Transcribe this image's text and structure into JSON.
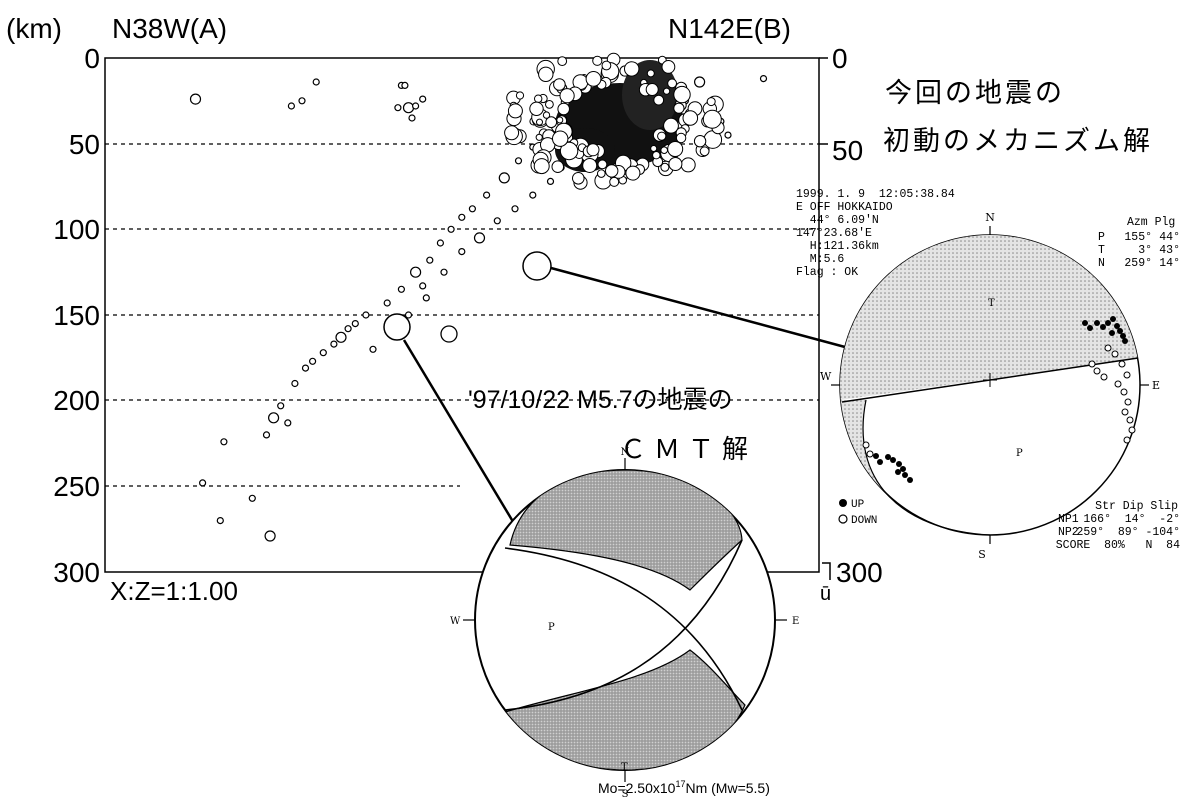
{
  "header": {
    "unit": "(km)",
    "left_direction": "N38W(A)",
    "right_direction": "N142E(B)"
  },
  "chart_data": {
    "type": "scatter",
    "title": "",
    "xlabel": "",
    "ylabel": "(km)",
    "ylim": [
      0,
      300
    ],
    "y_inverted": true,
    "yticks_left": [
      "0",
      "50",
      "100",
      "150",
      "200",
      "250",
      "300"
    ],
    "yticks_right": [
      "0",
      "50",
      "300"
    ],
    "scale_note": "X:Z=1:1.00",
    "right_axis_mark": "ū",
    "grid": "dashed horizontal lines at 50 km intervals",
    "points_note": "hypocenter depth cross-section, open circles sized by magnitude",
    "series": [
      {
        "name": "",
        "points_dist_depth": [
          [
            10,
            24
          ],
          [
            37,
            28
          ],
          [
            40,
            25
          ],
          [
            44,
            14
          ],
          [
            68,
            16
          ],
          [
            69,
            16
          ],
          [
            67,
            29
          ],
          [
            70,
            29
          ],
          [
            71,
            35
          ],
          [
            72,
            28
          ],
          [
            74,
            24
          ],
          [
            120,
            14
          ],
          [
            127,
            19
          ],
          [
            123,
            30
          ],
          [
            130,
            23
          ],
          [
            128,
            37
          ],
          [
            126,
            40
          ],
          [
            118,
            37
          ],
          [
            115,
            37
          ],
          [
            105,
            52
          ],
          [
            101,
            60
          ],
          [
            97,
            70
          ],
          [
            92,
            80
          ],
          [
            88,
            88
          ],
          [
            85,
            93
          ],
          [
            82,
            100
          ],
          [
            79,
            108
          ],
          [
            76,
            118
          ],
          [
            72,
            125
          ],
          [
            74,
            133
          ],
          [
            68,
            135
          ],
          [
            64,
            143
          ],
          [
            58,
            150
          ],
          [
            55,
            155
          ],
          [
            53,
            158
          ],
          [
            51,
            163
          ],
          [
            49,
            167
          ],
          [
            46,
            172
          ],
          [
            43,
            177
          ],
          [
            41,
            181
          ],
          [
            38,
            190
          ],
          [
            34,
            203
          ],
          [
            32,
            210
          ],
          [
            36,
            213
          ],
          [
            30,
            220
          ],
          [
            18,
            224
          ],
          [
            12,
            248
          ],
          [
            17,
            270
          ],
          [
            26,
            257
          ],
          [
            31,
            279
          ],
          [
            60,
            170
          ],
          [
            65,
            160
          ],
          [
            70,
            150
          ],
          [
            75,
            140
          ],
          [
            80,
            125
          ],
          [
            85,
            113
          ],
          [
            90,
            105
          ],
          [
            95,
            95
          ],
          [
            100,
            88
          ],
          [
            105,
            80
          ],
          [
            110,
            72
          ],
          [
            113,
            64
          ],
          [
            116,
            58
          ],
          [
            122,
            54
          ],
          [
            125,
            48
          ],
          [
            130,
            44
          ],
          [
            135,
            38
          ],
          [
            138,
            32
          ],
          [
            142,
            26
          ],
          [
            148,
            25
          ],
          [
            152,
            14
          ],
          [
            157,
            28
          ],
          [
            158,
            37
          ],
          [
            160,
            45
          ],
          [
            170,
            12
          ]
        ]
      }
    ],
    "highlight_events": [
      {
        "label": "'97/10/22 M5.7の地震の",
        "dist": 57,
        "depth": 160
      },
      {
        "label": "今回の地震の",
        "dist": 106,
        "depth": 122
      }
    ]
  },
  "annotations": {
    "first_motion_title_1": "今回の地震の",
    "first_motion_title_2": "初動のメカニズム解",
    "cmt_title_1": "'97/10/22 M5.7の地震の",
    "cmt_title_2": "ＣＭＴ解"
  },
  "first_motion": {
    "info_lines": [
      "1999. 1. 9  12:05:38.84",
      "E OFF HOKKAIDO",
      "  44° 6.09'N",
      "147°23.68'E",
      "  H:121.36km",
      "  M:5.6",
      "Flag : OK"
    ],
    "axes_header": "Azm Plg",
    "axes_rows": [
      {
        "name": "P",
        "azm": "155°",
        "plg": "44°"
      },
      {
        "name": "T",
        "azm": "3°",
        "plg": "43°"
      },
      {
        "name": "N",
        "azm": "259°",
        "plg": "14°"
      }
    ],
    "compass": {
      "N": "N",
      "E": "E",
      "S": "S",
      "W": "W"
    },
    "inside_labels": {
      "T": "T",
      "P": "P"
    },
    "legend_up": "UP",
    "legend_down": "DOWN",
    "table_header": "Str Dip Slip",
    "np1_label": "NP1",
    "np1_values": "166°  14°  -2°",
    "np2_label": "NP2",
    "np2_values": "259°  89° -104°",
    "score_line": "SCORE  80%   N  84",
    "colors": {
      "compression": "#cfcfcf",
      "stroke": "#000000"
    }
  },
  "cmt": {
    "compass": {
      "N": "N",
      "E": "E",
      "S": "S",
      "W": "W"
    },
    "inside_labels": {
      "T": "T",
      "P": "P"
    },
    "moment_prefix": "Mo=2.50x10",
    "moment_exp": "17",
    "moment_suffix": "Nm (Mw=5.5)",
    "colors": {
      "tension_fill": "#a9a9a9"
    }
  }
}
